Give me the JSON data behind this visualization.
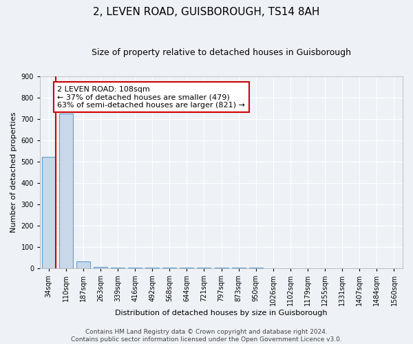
{
  "title": "2, LEVEN ROAD, GUISBOROUGH, TS14 8AH",
  "subtitle": "Size of property relative to detached houses in Guisborough",
  "xlabel": "Distribution of detached houses by size in Guisborough",
  "ylabel": "Number of detached properties",
  "categories": [
    "34sqm",
    "110sqm",
    "187sqm",
    "263sqm",
    "339sqm",
    "416sqm",
    "492sqm",
    "568sqm",
    "644sqm",
    "721sqm",
    "797sqm",
    "873sqm",
    "950sqm",
    "1026sqm",
    "1102sqm",
    "1179sqm",
    "1255sqm",
    "1331sqm",
    "1407sqm",
    "1484sqm",
    "1560sqm"
  ],
  "bar_heights": [
    520,
    725,
    30,
    5,
    3,
    2,
    2,
    1,
    1,
    1,
    1,
    1,
    1,
    0,
    0,
    0,
    0,
    0,
    0,
    0,
    0
  ],
  "bar_color": "#c8d8e8",
  "bar_edge_color": "#5b9bd5",
  "vline_color": "#cc0000",
  "annotation_line1": "2 LEVEN ROAD: 108sqm",
  "annotation_line2": "← 37% of detached houses are smaller (479)",
  "annotation_line3": "63% of semi-detached houses are larger (821) →",
  "annotation_box_color": "#ffffff",
  "annotation_box_edge_color": "#cc0000",
  "ylim": [
    0,
    900
  ],
  "yticks": [
    0,
    100,
    200,
    300,
    400,
    500,
    600,
    700,
    800,
    900
  ],
  "footer_text": "Contains HM Land Registry data © Crown copyright and database right 2024.\nContains public sector information licensed under the Open Government Licence v3.0.",
  "bg_color": "#eef2f6",
  "plot_bg_color": "#eef2f6",
  "title_fontsize": 11,
  "subtitle_fontsize": 9,
  "axis_label_fontsize": 8,
  "tick_fontsize": 7,
  "footer_fontsize": 6.5,
  "annotation_fontsize": 8
}
